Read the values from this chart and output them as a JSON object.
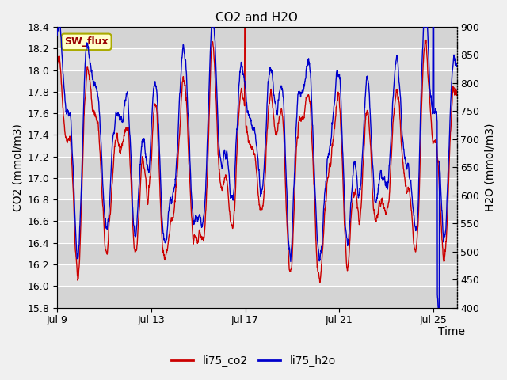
{
  "title": "CO2 and H2O",
  "xlabel": "Time",
  "ylabel_left": "CO2 (mmol/m3)",
  "ylabel_right": "H2O (mmol/m3)",
  "ylim_left": [
    15.8,
    18.4
  ],
  "ylim_right": [
    400,
    900
  ],
  "yticks_left": [
    15.8,
    16.0,
    16.2,
    16.4,
    16.6,
    16.8,
    17.0,
    17.2,
    17.4,
    17.6,
    17.8,
    18.0,
    18.2,
    18.4
  ],
  "yticks_right": [
    400,
    450,
    500,
    550,
    600,
    650,
    700,
    750,
    800,
    850,
    900
  ],
  "xtick_labels": [
    "Jul 9",
    "Jul 13",
    "Jul 17",
    "Jul 21",
    "Jul 25"
  ],
  "xtick_positions": [
    0,
    4,
    8,
    12,
    16
  ],
  "color_co2": "#cc0000",
  "color_h2o": "#0000cc",
  "legend_labels": [
    "li75_co2",
    "li75_h2o"
  ],
  "sw_flux_label": "SW_flux",
  "sw_flux_bg": "#ffffcc",
  "sw_flux_border": "#aaaa00",
  "sw_flux_text_color": "#990000",
  "fig_bg": "#f0f0f0",
  "stripe_dark": "#d4d4d4",
  "stripe_light": "#e0e0e0",
  "n_points": 2000,
  "seed": 77
}
